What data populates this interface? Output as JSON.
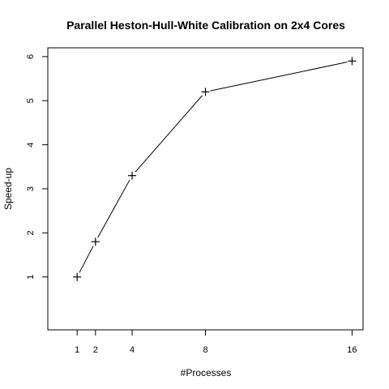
{
  "chart_data": {
    "type": "line",
    "title": "Parallel Heston-Hull-White Calibration on 2x4 Cores",
    "xlabel": "#Processes",
    "ylabel": "Speed-up",
    "x": [
      1,
      2,
      4,
      8,
      16
    ],
    "xticks": [
      "1",
      "2",
      "4",
      "8",
      "16"
    ],
    "yticks": [
      "1",
      "2",
      "3",
      "4",
      "5",
      "6"
    ],
    "xlim": [
      -0.6,
      16.6
    ],
    "ylim": [
      -0.2,
      6.2
    ],
    "grid": false,
    "marker": "plus",
    "series": [
      {
        "values": [
          1.0,
          1.8,
          3.3,
          5.2,
          5.9
        ]
      }
    ]
  }
}
